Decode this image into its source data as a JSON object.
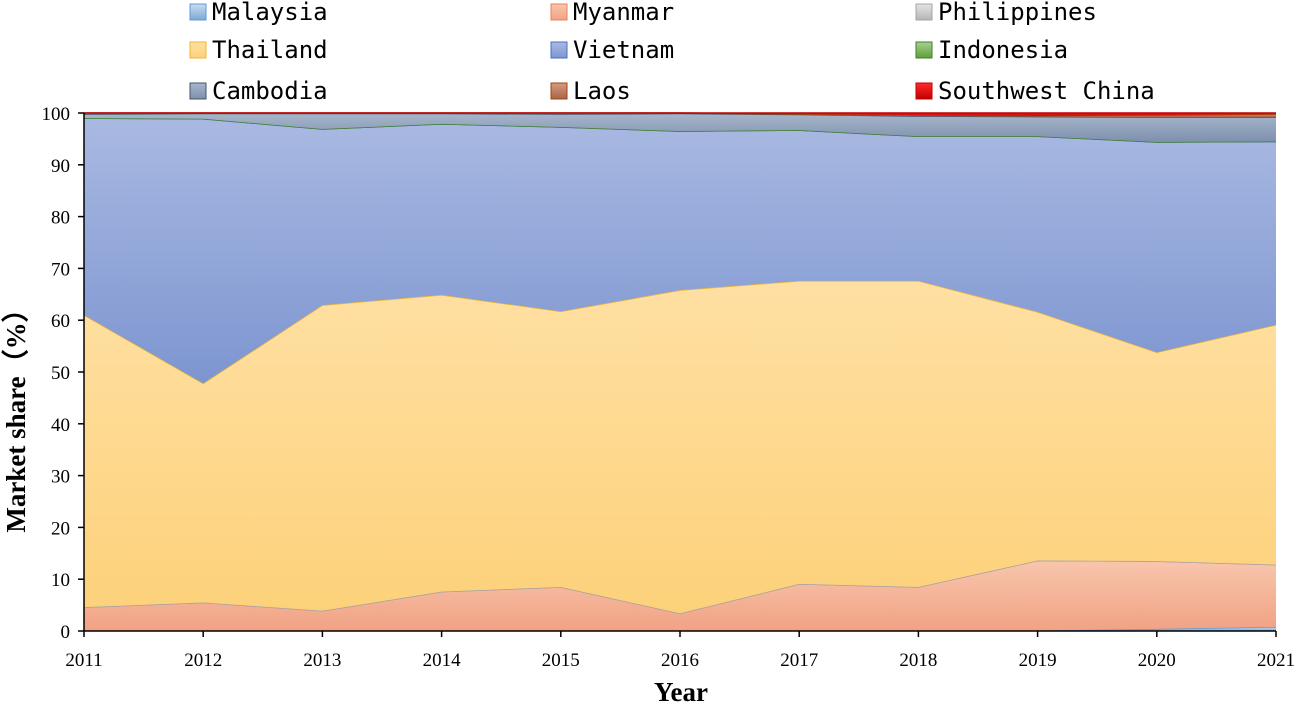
{
  "chart_data": {
    "type": "area",
    "stacked": true,
    "xlabel": "Year",
    "ylabel": "Market share（%）",
    "ylim": [
      0,
      100
    ],
    "yticks": [
      0,
      10,
      20,
      30,
      40,
      50,
      60,
      70,
      80,
      90,
      100
    ],
    "x": [
      2011,
      2012,
      2013,
      2014,
      2015,
      2016,
      2017,
      2018,
      2019,
      2020,
      2021
    ],
    "x_labels": [
      "2011",
      "2012",
      "2013",
      "2014",
      "2015",
      "2016",
      "2017",
      "2018",
      "2019",
      "2020",
      "2021"
    ],
    "legend_position": "top",
    "series": [
      {
        "name": "Malaysia",
        "color": "#9dc3e6",
        "values": [
          0.1,
          0.1,
          0.1,
          0.1,
          0.1,
          0.1,
          0.1,
          0.1,
          0.1,
          0.4,
          0.8
        ]
      },
      {
        "name": "Myanmar",
        "color": "#f4a582",
        "values": [
          4.5,
          5.4,
          3.8,
          7.5,
          8.4,
          3.3,
          9.0,
          8.4,
          13.5,
          13.1,
          12.0
        ]
      },
      {
        "name": "Philippines",
        "color": "#c9c9c9",
        "values": [
          0,
          0,
          0,
          0,
          0,
          0,
          0,
          0,
          0,
          0,
          0
        ]
      },
      {
        "name": "Thailand",
        "color": "#ffd58a",
        "values": [
          56.4,
          42.3,
          59.0,
          57.3,
          53.2,
          62.4,
          58.5,
          59.1,
          48.0,
          40.3,
          46.3
        ]
      },
      {
        "name": "Vietnam",
        "color": "#8ea5d8",
        "values": [
          38.0,
          51.1,
          34.0,
          33.0,
          35.6,
          30.7,
          29.1,
          27.9,
          33.9,
          40.6,
          35.4
        ]
      },
      {
        "name": "Indonesia",
        "color": "#70ad47",
        "values": [
          0,
          0,
          0,
          0,
          0,
          0,
          0,
          0,
          0,
          0,
          0
        ]
      },
      {
        "name": "Cambodia",
        "color": "#8fa2bd",
        "values": [
          0.8,
          1.0,
          3.0,
          2.0,
          2.5,
          3.4,
          3.0,
          3.9,
          3.8,
          4.8,
          4.7
        ]
      },
      {
        "name": "Laos",
        "color": "#c07a60",
        "values": [
          0.2,
          0.1,
          0.1,
          0.1,
          0.2,
          0.1,
          0.1,
          0.2,
          0.2,
          0.4,
          0.6
        ]
      },
      {
        "name": "Southwest China",
        "color": "#e31a1c",
        "values": [
          0,
          0,
          0,
          0,
          0,
          0,
          0.2,
          0.4,
          0.5,
          0.4,
          0.2
        ]
      }
    ]
  }
}
